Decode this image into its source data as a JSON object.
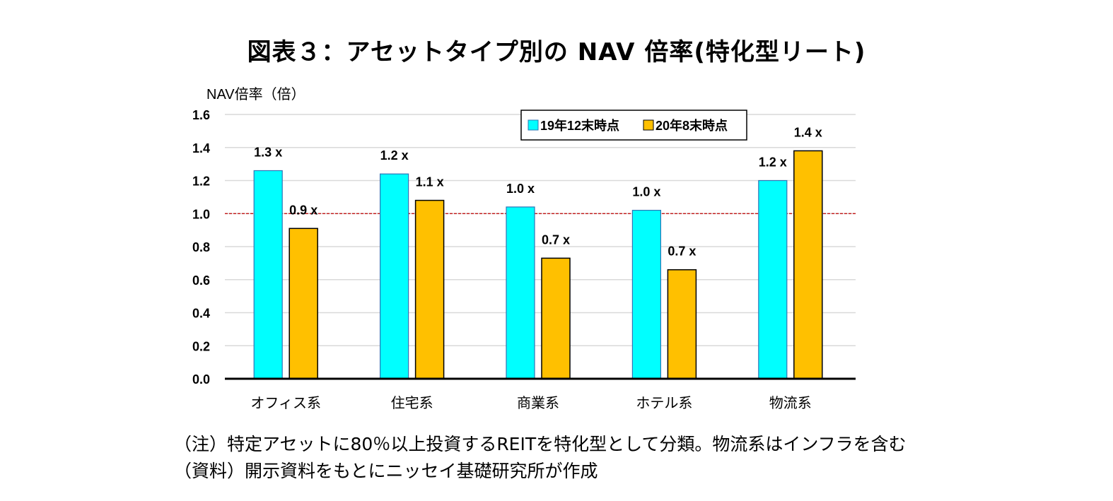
{
  "chart_data": {
    "type": "bar",
    "title": "図表３：アセットタイプ別の NAV 倍率(特化型リート)",
    "ylabel": "NAV倍率（倍）",
    "xlabel": "",
    "categories": [
      "オフィス系",
      "住宅系",
      "商業系",
      "ホテル系",
      "物流系"
    ],
    "series": [
      {
        "name": "19年12末時点",
        "values": [
          1.26,
          1.24,
          1.04,
          1.02,
          1.2
        ],
        "labels": [
          "1.3 x",
          "1.2 x",
          "1.0 x",
          "1.0 x",
          "1.2 x"
        ],
        "color": "#00FFFF"
      },
      {
        "name": "20年8末時点",
        "values": [
          0.91,
          1.08,
          0.73,
          0.66,
          1.38
        ],
        "labels": [
          "0.9 x",
          "1.1 x",
          "0.7 x",
          "0.7 x",
          "1.4 x"
        ],
        "color": "#FFC000"
      }
    ],
    "yticks": [
      "0.0",
      "0.2",
      "0.4",
      "0.6",
      "0.8",
      "1.0",
      "1.2",
      "1.4",
      "1.6"
    ],
    "ylim": [
      0,
      1.6
    ],
    "reference_line": 1.0,
    "reference_line_color": "#C00000",
    "grid": true,
    "legend_position": "top-right"
  },
  "notes": [
    "（注）特定アセットに80％以上投資するREITを特化型として分類。物流系はインフラを含む",
    "（資料）開示資料をもとにニッセイ基礎研究所が作成"
  ]
}
